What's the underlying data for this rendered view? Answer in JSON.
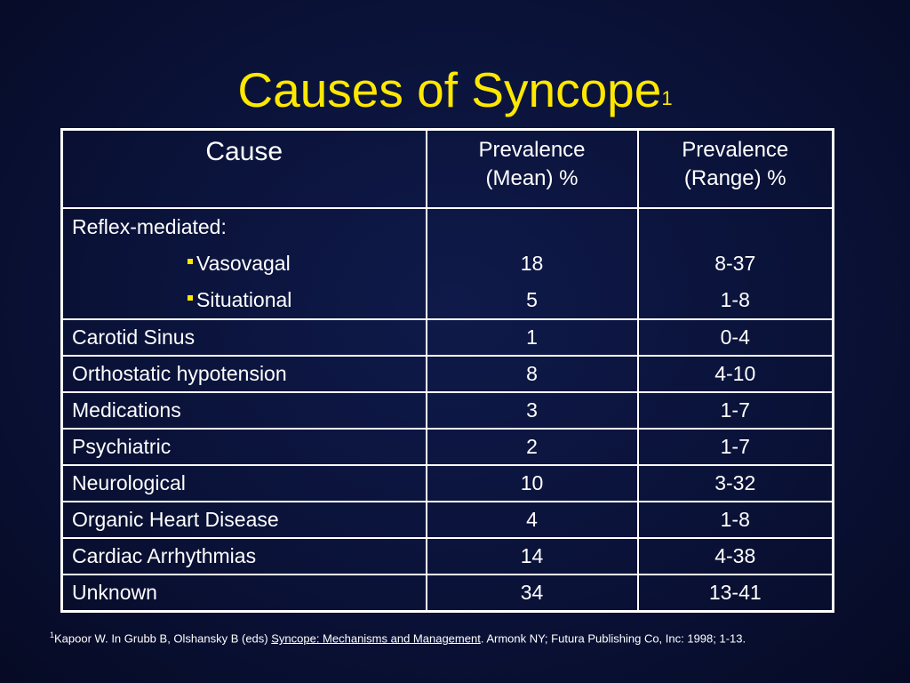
{
  "slide": {
    "title": "Causes of Syncope",
    "title_sup": "1"
  },
  "table": {
    "headers": {
      "cause": "Cause",
      "mean_line1": "Prevalence",
      "mean_line2": "(Mean) %",
      "range_line1": "Prevalence",
      "range_line2": "(Range) %"
    },
    "reflex": {
      "label": "Reflex-mediated:",
      "subs": [
        {
          "name": "Vasovagal",
          "mean": "18",
          "range": "8-37"
        },
        {
          "name": "Situational",
          "mean": "5",
          "range": "1-8"
        }
      ]
    },
    "rows": [
      {
        "cause": "Carotid Sinus",
        "mean": "1",
        "range": "0-4"
      },
      {
        "cause": "Orthostatic hypotension",
        "mean": "8",
        "range": "4-10"
      },
      {
        "cause": "Medications",
        "mean": "3",
        "range": "1-7"
      },
      {
        "cause": "Psychiatric",
        "mean": "2",
        "range": "1-7"
      },
      {
        "cause": "Neurological",
        "mean": "10",
        "range": "3-32"
      },
      {
        "cause": "Organic Heart Disease",
        "mean": "4",
        "range": "1-8"
      },
      {
        "cause": "Cardiac Arrhythmias",
        "mean": "14",
        "range": "4-38"
      },
      {
        "cause": "Unknown",
        "mean": "34",
        "range": "13-41"
      }
    ]
  },
  "footnote": {
    "sup": "1",
    "text_before": "Kapoor W. In Grubb B, Olshansky B (eds) ",
    "book_title": "Syncope: Mechanisms and Management",
    "text_after": ".  Armonk NY; Futura Publishing Co, Inc: 1998; 1-13."
  },
  "colors": {
    "title": "#ffe800",
    "background": "#0a1238",
    "bullet": "#ffe800"
  }
}
